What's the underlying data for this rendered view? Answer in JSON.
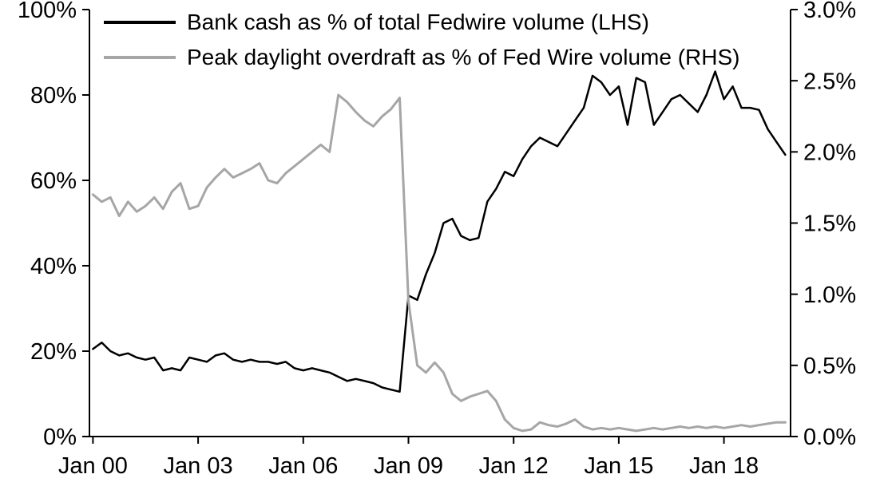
{
  "chart_data": {
    "type": "line",
    "title": "",
    "grid": false,
    "legend_position": "top-left",
    "x_domain": [
      1999.9,
      2019.9
    ],
    "x_ticks": [
      {
        "v": 2000,
        "label": "Jan 00"
      },
      {
        "v": 2003,
        "label": "Jan 03"
      },
      {
        "v": 2006,
        "label": "Jan 06"
      },
      {
        "v": 2009,
        "label": "Jan 09"
      },
      {
        "v": 2012,
        "label": "Jan 12"
      },
      {
        "v": 2015,
        "label": "Jan 15"
      },
      {
        "v": 2018,
        "label": "Jan 18"
      }
    ],
    "y_left": {
      "min": 0,
      "max": 100,
      "ticks": [
        {
          "v": 0,
          "label": "0%"
        },
        {
          "v": 20,
          "label": "20%"
        },
        {
          "v": 40,
          "label": "40%"
        },
        {
          "v": 60,
          "label": "60%"
        },
        {
          "v": 80,
          "label": "80%"
        },
        {
          "v": 100,
          "label": "100%"
        }
      ]
    },
    "y_right": {
      "min": 0,
      "max": 3,
      "ticks": [
        {
          "v": 0,
          "label": "0.0%"
        },
        {
          "v": 0.5,
          "label": "0.5%"
        },
        {
          "v": 1,
          "label": "1.0%"
        },
        {
          "v": 1.5,
          "label": "1.5%"
        },
        {
          "v": 2,
          "label": "2.0%"
        },
        {
          "v": 2.5,
          "label": "2.5%"
        },
        {
          "v": 3,
          "label": "3.0%"
        }
      ]
    },
    "x": [
      2000,
      2000.25,
      2000.5,
      2000.75,
      2001,
      2001.25,
      2001.5,
      2001.75,
      2002,
      2002.25,
      2002.5,
      2002.75,
      2003,
      2003.25,
      2003.5,
      2003.75,
      2004,
      2004.25,
      2004.5,
      2004.75,
      2005,
      2005.25,
      2005.5,
      2005.75,
      2006,
      2006.25,
      2006.5,
      2006.75,
      2007,
      2007.25,
      2007.5,
      2007.75,
      2008,
      2008.25,
      2008.5,
      2008.75,
      2009,
      2009.25,
      2009.5,
      2009.75,
      2010,
      2010.25,
      2010.5,
      2010.75,
      2011,
      2011.25,
      2011.5,
      2011.75,
      2012,
      2012.25,
      2012.5,
      2012.75,
      2013,
      2013.25,
      2013.5,
      2013.75,
      2014,
      2014.25,
      2014.5,
      2014.75,
      2015,
      2015.25,
      2015.5,
      2015.75,
      2016,
      2016.25,
      2016.5,
      2016.75,
      2017,
      2017.25,
      2017.5,
      2017.75,
      2018,
      2018.25,
      2018.5,
      2018.75,
      2019,
      2019.25,
      2019.5,
      2019.75
    ],
    "series": [
      {
        "name": "Bank cash as % of total Fedwire volume (LHS)",
        "axis": "left",
        "color": "#000000",
        "width": 2.5,
        "values": [
          20.5,
          22,
          20,
          19,
          19.5,
          18.5,
          18,
          18.5,
          15.5,
          16,
          15.5,
          18.5,
          18,
          17.5,
          19,
          19.5,
          18,
          17.5,
          18,
          17.5,
          17.5,
          17,
          17.5,
          16,
          15.5,
          16,
          15.5,
          15,
          14,
          13,
          13.5,
          13,
          12.5,
          11.5,
          11,
          10.5,
          33,
          32,
          38,
          43,
          50,
          51,
          47,
          46,
          46.5,
          55,
          58,
          62,
          61,
          65,
          68,
          70,
          69,
          68,
          71,
          74,
          77,
          84.5,
          83,
          80,
          82,
          73,
          84,
          83,
          73,
          76,
          79,
          80,
          78,
          76,
          80,
          85.5,
          79,
          82,
          77,
          77,
          76.5,
          72,
          69,
          66
        ]
      },
      {
        "name": "Peak daylight overdraft as % of Fed Wire volume (RHS)",
        "axis": "right",
        "color": "#a6a6a6",
        "width": 3,
        "values": [
          1.7,
          1.65,
          1.68,
          1.55,
          1.65,
          1.58,
          1.62,
          1.68,
          1.6,
          1.72,
          1.78,
          1.6,
          1.62,
          1.75,
          1.82,
          1.88,
          1.82,
          1.85,
          1.88,
          1.92,
          1.8,
          1.78,
          1.85,
          1.9,
          1.95,
          2.0,
          2.05,
          2.0,
          2.4,
          2.35,
          2.28,
          2.22,
          2.18,
          2.25,
          2.3,
          2.38,
          0.95,
          0.5,
          0.45,
          0.52,
          0.45,
          0.3,
          0.25,
          0.28,
          0.3,
          0.32,
          0.25,
          0.12,
          0.06,
          0.04,
          0.05,
          0.1,
          0.08,
          0.07,
          0.09,
          0.12,
          0.07,
          0.05,
          0.06,
          0.05,
          0.06,
          0.05,
          0.04,
          0.05,
          0.06,
          0.05,
          0.06,
          0.07,
          0.06,
          0.07,
          0.06,
          0.07,
          0.06,
          0.07,
          0.08,
          0.07,
          0.08,
          0.09,
          0.1,
          0.1
        ]
      }
    ]
  },
  "legend": {
    "items": [
      {
        "label": "Bank cash as % of total Fedwire volume (LHS)",
        "color": "#000000"
      },
      {
        "label": "Peak daylight overdraft as % of Fed Wire volume (RHS)",
        "color": "#a6a6a6"
      }
    ]
  }
}
